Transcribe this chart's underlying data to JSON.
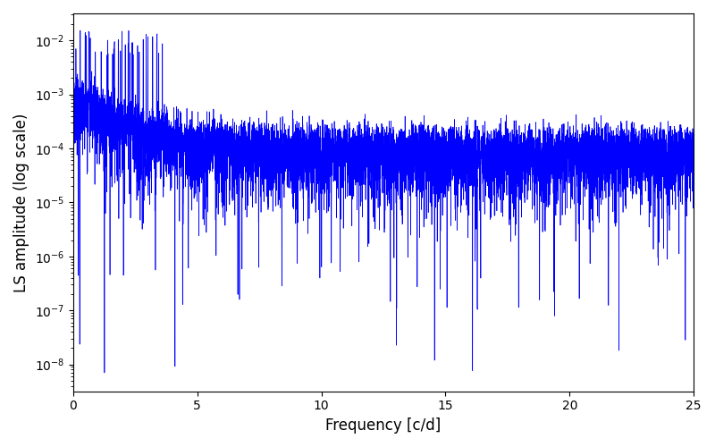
{
  "title": "",
  "xlabel": "Frequency [c/d]",
  "ylabel": "LS amplitude (log scale)",
  "line_color": "#0000ff",
  "xlim": [
    0,
    25
  ],
  "ylim_log": [
    -8.5,
    -1.5
  ],
  "freq_min": 0.0,
  "freq_max": 25.0,
  "n_points": 8000,
  "seed": 17,
  "background_color": "#ffffff",
  "figsize": [
    8.0,
    5.0
  ],
  "dpi": 100
}
